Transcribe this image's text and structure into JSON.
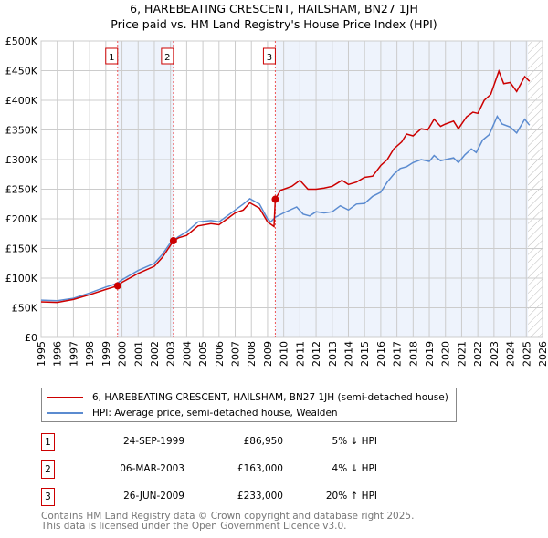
{
  "title": "6, HAREBEATING CRESCENT, HAILSHAM, BN27 1JH",
  "subtitle": "Price paid vs. HM Land Registry's House Price Index (HPI)",
  "chart_data": {
    "type": "line",
    "title": "6, HAREBEATING CRESCENT, HAILSHAM, BN27 1JH",
    "subtitle": "Price paid vs. HM Land Registry's House Price Index (HPI)",
    "xlim": [
      1995,
      2026
    ],
    "ylim": [
      0,
      500000
    ],
    "x_ticks": [
      "1995",
      "1996",
      "1997",
      "1998",
      "1999",
      "2000",
      "2001",
      "2002",
      "2003",
      "2004",
      "2005",
      "2006",
      "2007",
      "2008",
      "2009",
      "2010",
      "2011",
      "2012",
      "2013",
      "2014",
      "2015",
      "2016",
      "2017",
      "2018",
      "2019",
      "2020",
      "2021",
      "2022",
      "2023",
      "2024",
      "2025",
      "2026"
    ],
    "y_ticks": [
      {
        "value": 0,
        "label": "£0"
      },
      {
        "value": 50000,
        "label": "£50K"
      },
      {
        "value": 100000,
        "label": "£100K"
      },
      {
        "value": 150000,
        "label": "£150K"
      },
      {
        "value": 200000,
        "label": "£200K"
      },
      {
        "value": 250000,
        "label": "£250K"
      },
      {
        "value": 300000,
        "label": "£300K"
      },
      {
        "value": 350000,
        "label": "£350K"
      },
      {
        "value": 400000,
        "label": "£400K"
      },
      {
        "value": 450000,
        "label": "£450K"
      },
      {
        "value": 500000,
        "label": "£500K"
      }
    ],
    "grid": true,
    "shaded_periods": [
      [
        1999.73,
        2003.18
      ],
      [
        2009.48,
        2025.1
      ]
    ],
    "forecast_hatch_from": 2025.1,
    "series": [
      {
        "name": "6, HAREBEATING CRESCENT, HAILSHAM, BN27 1JH (semi-detached house)",
        "color": "#cc0000",
        "x": [
          1995,
          1996,
          1997,
          1998,
          1999,
          1999.73,
          2000,
          2001,
          2002,
          2002.5,
          2003.18,
          2003.5,
          2004,
          2004.7,
          2005.5,
          2006,
          2006.5,
          2007,
          2007.5,
          2007.9,
          2008.5,
          2009,
          2009.4,
          2009.48,
          2009.8,
          2010.5,
          2011,
          2011.5,
          2012,
          2012.5,
          2013,
          2013.6,
          2014,
          2014.5,
          2015,
          2015.5,
          2016,
          2016.4,
          2016.8,
          2017.3,
          2017.6,
          2018,
          2018.5,
          2018.9,
          2019.3,
          2019.7,
          2020,
          2020.5,
          2020.8,
          2021.3,
          2021.7,
          2022,
          2022.4,
          2022.8,
          2023.3,
          2023.6,
          2024,
          2024.4,
          2024.9,
          2025.2
        ],
        "y": [
          60000,
          59000,
          64000,
          72000,
          81000,
          86950,
          93000,
          108000,
          120000,
          135000,
          163000,
          168000,
          172000,
          188000,
          192000,
          190000,
          200000,
          210000,
          215000,
          227000,
          218000,
          195000,
          187000,
          233000,
          248000,
          255000,
          265000,
          250000,
          250000,
          252000,
          255000,
          265000,
          258000,
          262000,
          270000,
          272000,
          290000,
          300000,
          318000,
          330000,
          343000,
          340000,
          352000,
          350000,
          368000,
          356000,
          360000,
          365000,
          352000,
          372000,
          380000,
          378000,
          400000,
          410000,
          449000,
          428000,
          430000,
          415000,
          440000,
          432000
        ]
      },
      {
        "name": "HPI: Average price, semi-detached house, Wealden",
        "color": "#5b8bd0",
        "x": [
          1995,
          1996,
          1997,
          1998,
          1999,
          1999.7,
          2000,
          2001,
          2002,
          2002.5,
          2003,
          2003.5,
          2004,
          2004.7,
          2005.5,
          2006,
          2006.5,
          2007,
          2007.5,
          2007.9,
          2008.5,
          2009,
          2009.2,
          2009.5,
          2010,
          2010.8,
          2011.2,
          2011.6,
          2012,
          2012.5,
          2013,
          2013.5,
          2014,
          2014.5,
          2015,
          2015.5,
          2016,
          2016.4,
          2016.8,
          2017.2,
          2017.6,
          2018,
          2018.5,
          2019,
          2019.3,
          2019.7,
          2020,
          2020.5,
          2020.8,
          2021.2,
          2021.6,
          2021.9,
          2022.3,
          2022.7,
          2023.2,
          2023.5,
          2024,
          2024.4,
          2024.9,
          2025.2
        ],
        "y": [
          63000,
          62000,
          66000,
          75000,
          85000,
          91000,
          97000,
          113000,
          125000,
          140000,
          160000,
          170000,
          178000,
          195000,
          197000,
          195000,
          205000,
          215000,
          225000,
          234000,
          225000,
          200000,
          195000,
          203000,
          210000,
          220000,
          208000,
          205000,
          212000,
          210000,
          212000,
          222000,
          215000,
          225000,
          226000,
          238000,
          245000,
          262000,
          275000,
          285000,
          288000,
          295000,
          300000,
          297000,
          307000,
          298000,
          300000,
          303000,
          295000,
          308000,
          318000,
          312000,
          333000,
          342000,
          373000,
          360000,
          355000,
          345000,
          368000,
          358000
        ]
      }
    ],
    "sales": [
      {
        "label": "1",
        "x": 1999.73,
        "y": 86950
      },
      {
        "label": "2",
        "x": 2003.18,
        "y": 163000
      },
      {
        "label": "3",
        "x": 2009.48,
        "y": 233000
      }
    ],
    "legend_placement": "below"
  },
  "legend": {
    "property": "6, HAREBEATING CRESCENT, HAILSHAM, BN27 1JH (semi-detached house)",
    "hpi": "HPI: Average price, semi-detached house, Wealden"
  },
  "transactions": [
    {
      "num": "1",
      "date": "24-SEP-1999",
      "price": "£86,950",
      "pct": "5% ↓ HPI"
    },
    {
      "num": "2",
      "date": "06-MAR-2003",
      "price": "£163,000",
      "pct": "4% ↓ HPI"
    },
    {
      "num": "3",
      "date": "26-JUN-2009",
      "price": "£233,000",
      "pct": "20% ↑ HPI"
    }
  ],
  "footer": {
    "line1": "Contains HM Land Registry data © Crown copyright and database right 2025.",
    "line2": "This data is licensed under the Open Government Licence v3.0."
  }
}
